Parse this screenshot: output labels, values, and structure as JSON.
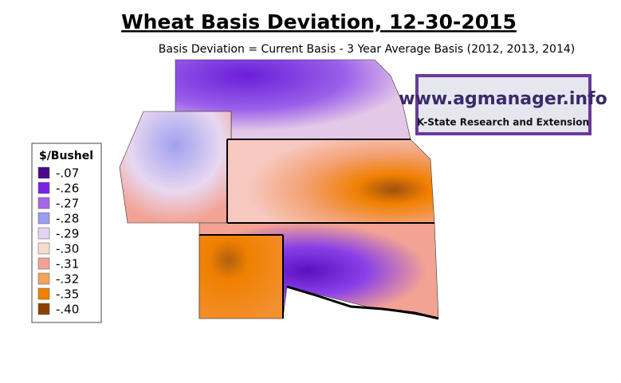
{
  "title": "Wheat Basis Deviation, 12-30-2015",
  "subtitle": "Basis Deviation = Current Basis - 3 Year Average Basis (2012, 2013, 2014)",
  "legend": {
    "title": "$/Bushel",
    "items": [
      {
        "label": "-.07",
        "color": "#4b0a8c"
      },
      {
        "label": "-.26",
        "color": "#7a22e6"
      },
      {
        "label": "-.27",
        "color": "#a467ea"
      },
      {
        "label": "-.28",
        "color": "#9c9cf2"
      },
      {
        "label": "-.29",
        "color": "#e4d4f2"
      },
      {
        "label": "-.30",
        "color": "#f8dccb"
      },
      {
        "label": "-.31",
        "color": "#f2a394"
      },
      {
        "label": "-.32",
        "color": "#f3a35e"
      },
      {
        "label": "-.35",
        "color": "#f08000"
      },
      {
        "label": "-.40",
        "color": "#8b4200"
      }
    ]
  },
  "logo": {
    "url": "www.agmanager.info",
    "org": "K-State Research and Extension"
  }
}
